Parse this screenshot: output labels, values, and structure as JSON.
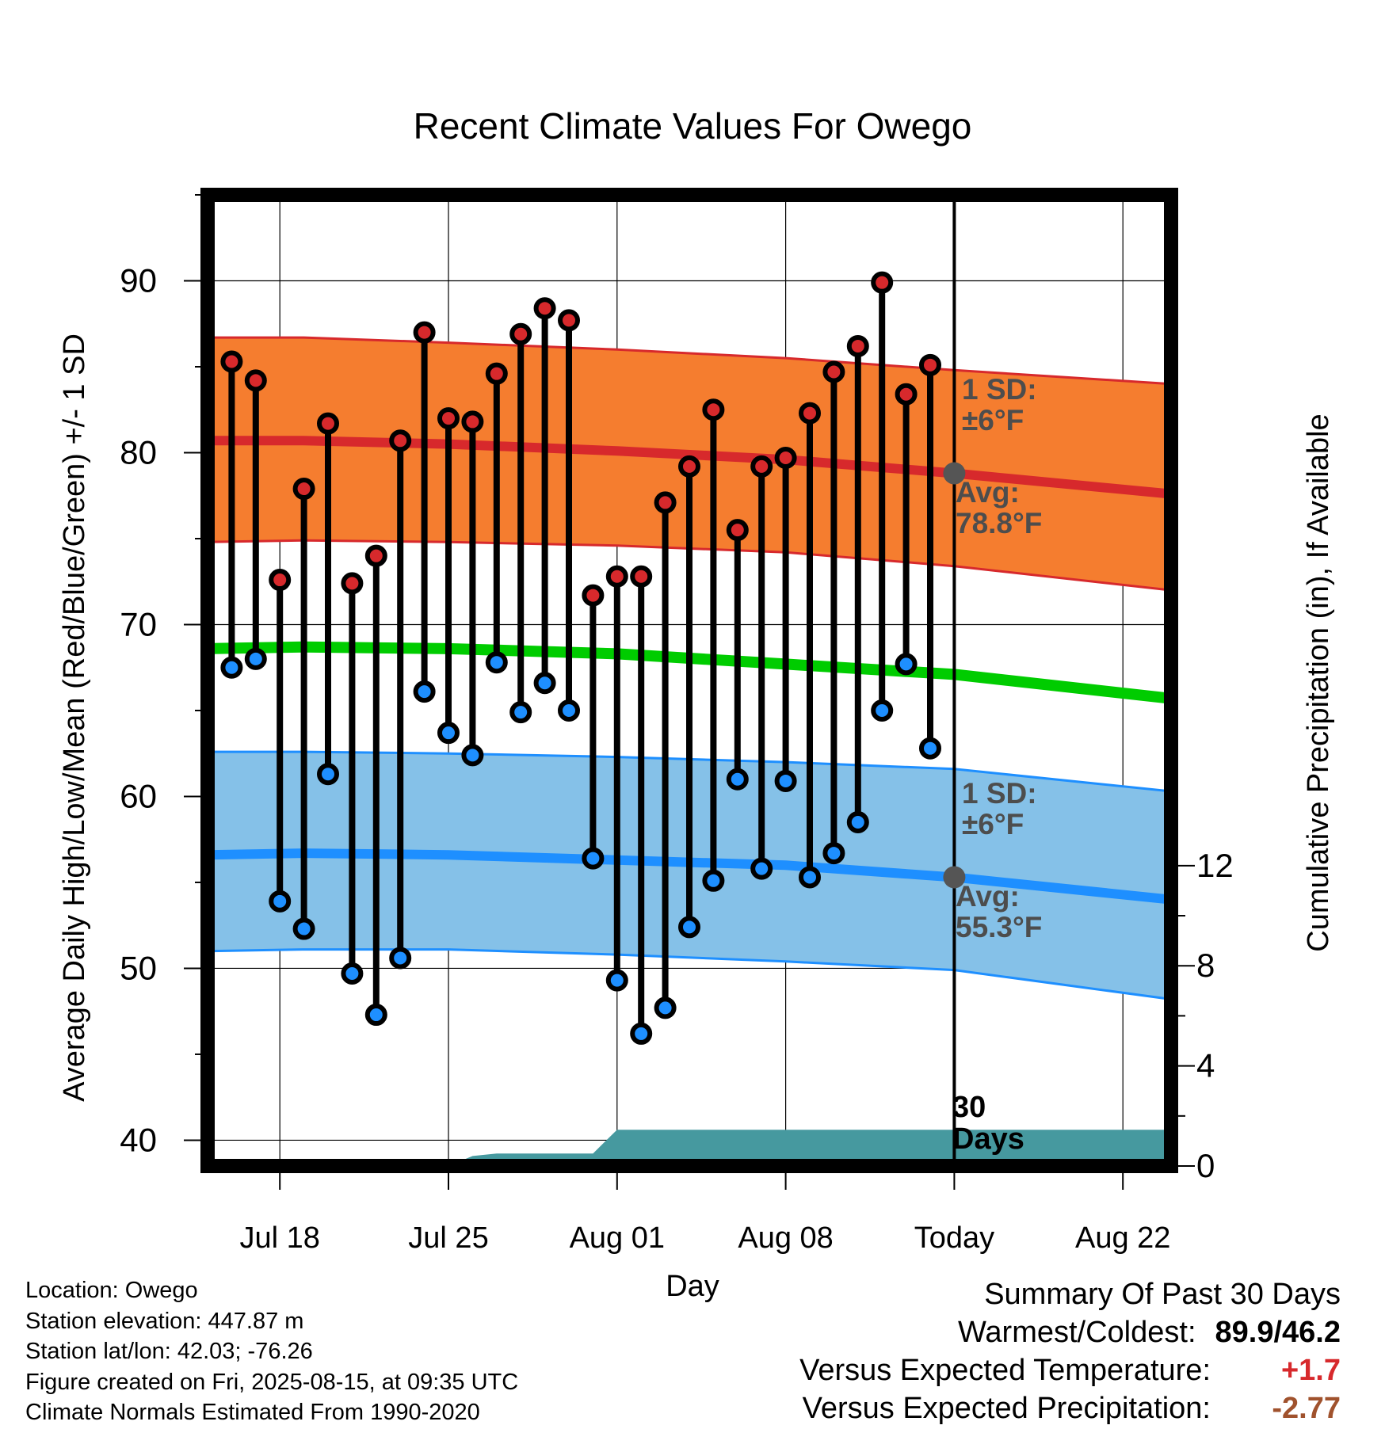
{
  "chart_data": {
    "type": "line",
    "title": "Recent Climate Values For Owego",
    "xlabel": "Day",
    "ylabel": "Average Daily High/Low/Mean (Red/Blue/Green) +/- 1 SD",
    "y2label": "Cumulative Precipitation (in), If Available",
    "ylim": [
      38.5,
      95
    ],
    "y2lim": [
      0,
      38.8
    ],
    "yticks": [
      40,
      50,
      60,
      70,
      80,
      90
    ],
    "y2ticks": [
      0,
      4,
      8,
      12
    ],
    "xlim": [
      "2025-07-15",
      "2025-08-24"
    ],
    "xticks": [
      {
        "date": "2025-07-18",
        "label": "Jul 18"
      },
      {
        "date": "2025-07-25",
        "label": "Jul 25"
      },
      {
        "date": "2025-08-01",
        "label": "Aug 01"
      },
      {
        "date": "2025-08-08",
        "label": "Aug 08"
      },
      {
        "date": "2025-08-15",
        "label": "Today"
      },
      {
        "date": "2025-08-22",
        "label": "Aug 22"
      }
    ],
    "grid": true,
    "today": "2025-08-15",
    "daily": {
      "dates": [
        "2025-07-16",
        "2025-07-17",
        "2025-07-18",
        "2025-07-19",
        "2025-07-20",
        "2025-07-21",
        "2025-07-22",
        "2025-07-23",
        "2025-07-24",
        "2025-07-25",
        "2025-07-26",
        "2025-07-27",
        "2025-07-28",
        "2025-07-29",
        "2025-07-30",
        "2025-07-31",
        "2025-08-01",
        "2025-08-02",
        "2025-08-03",
        "2025-08-04",
        "2025-08-05",
        "2025-08-06",
        "2025-08-07",
        "2025-08-08",
        "2025-08-09",
        "2025-08-10",
        "2025-08-11",
        "2025-08-12",
        "2025-08-13",
        "2025-08-14"
      ],
      "high": [
        85.3,
        84.2,
        72.6,
        77.9,
        81.7,
        72.4,
        74.0,
        80.7,
        87.0,
        82.0,
        81.8,
        84.6,
        86.9,
        88.4,
        87.7,
        71.7,
        72.8,
        72.8,
        77.1,
        79.2,
        82.5,
        75.5,
        79.2,
        79.7,
        82.3,
        84.7,
        86.2,
        89.9,
        83.4,
        85.1
      ],
      "low": [
        67.5,
        68.0,
        53.9,
        52.3,
        61.3,
        49.7,
        47.3,
        50.6,
        66.1,
        63.7,
        62.4,
        67.8,
        64.9,
        66.6,
        65.0,
        56.4,
        49.3,
        46.2,
        47.7,
        52.4,
        55.1,
        61.0,
        55.8,
        60.9,
        55.3,
        56.7,
        58.5,
        65.0,
        67.7,
        62.8
      ]
    },
    "normals": {
      "dates": [
        "2025-07-15",
        "2025-07-19",
        "2025-07-25",
        "2025-08-01",
        "2025-08-08",
        "2025-08-15",
        "2025-08-24"
      ],
      "high_mean": [
        80.7,
        80.7,
        80.5,
        80.1,
        79.6,
        78.8,
        77.6
      ],
      "high_upper": [
        86.7,
        86.7,
        86.4,
        86.0,
        85.5,
        84.8,
        84.0
      ],
      "high_lower": [
        74.8,
        74.9,
        74.8,
        74.6,
        74.2,
        73.4,
        72.0
      ],
      "mean": [
        68.6,
        68.7,
        68.6,
        68.3,
        67.7,
        67.1,
        65.7
      ],
      "low_mean": [
        56.6,
        56.7,
        56.6,
        56.3,
        56.0,
        55.3,
        54.0
      ],
      "low_upper": [
        62.6,
        62.6,
        62.5,
        62.3,
        62.0,
        61.6,
        60.3
      ],
      "low_lower": [
        51.0,
        51.1,
        51.1,
        50.8,
        50.4,
        49.9,
        48.2
      ]
    },
    "precip_cumulative": {
      "dates": [
        "2025-07-15",
        "2025-07-25",
        "2025-07-26",
        "2025-07-27",
        "2025-07-31",
        "2025-08-01",
        "2025-08-24"
      ],
      "values": [
        0,
        0,
        0.4,
        0.5,
        0.5,
        1.45,
        1.45
      ]
    },
    "annotations": {
      "high_sd": "1 SD:\n±6°F",
      "high_avg": "Avg:\n78.8°F",
      "low_sd": "1 SD:\n±6°F",
      "low_avg": "Avg:\n55.3°F",
      "precip_days": "30\nDays"
    },
    "colors": {
      "high_band": "#F57D2F",
      "high_line": "#D7292C",
      "low_band": "#85C1E8",
      "low_line": "#1E8FFF",
      "mean_line": "#00CC00",
      "precip": "#46999F",
      "high_dot": "#D7292C",
      "low_dot": "#1E8FFF",
      "annotation": "#4D4D4D"
    }
  },
  "footer": {
    "location": "Location: Owego",
    "elevation": "Station elevation: 447.87 m",
    "latlon": "Station lat/lon: 42.03; -76.26",
    "created": "Figure created on Fri, 2025-08-15, at 09:35 UTC",
    "normals": "Climate Normals Estimated From 1990-2020"
  },
  "summary": {
    "title": "Summary Of Past 30 Days",
    "warmest_label": "Warmest/Coldest:",
    "warmest_value": "89.9/46.2",
    "temp_label": "Versus Expected Temperature:",
    "temp_value": "+1.7",
    "temp_color": "#D7292C",
    "precip_label": "Versus Expected Precipitation:",
    "precip_value": "-2.77",
    "precip_color": "#A0522D"
  }
}
